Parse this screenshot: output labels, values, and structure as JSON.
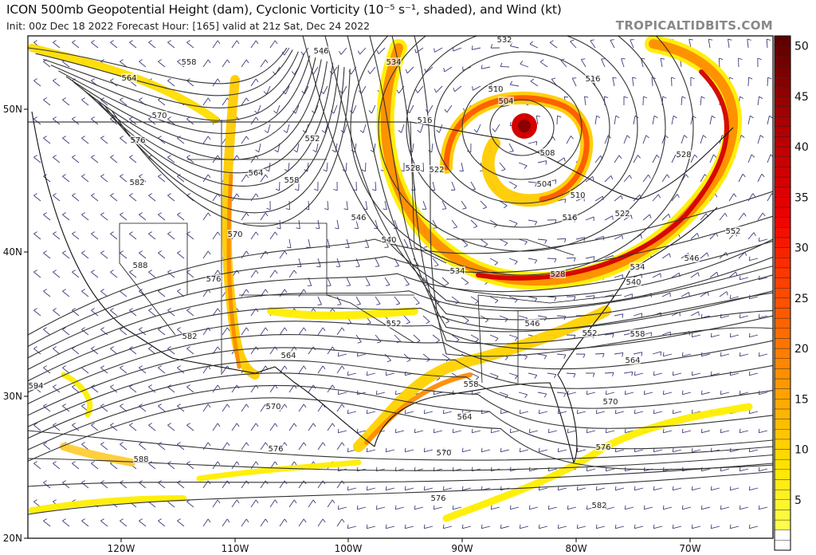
{
  "header": {
    "title": "ICON 500mb Geopotential Height (dam), Cyclonic Vorticity (10⁻⁵ s⁻¹, shaded), and Wind (kt)",
    "subtitle": "Init: 00z Dec 18 2022   Forecast Hour: [165]   valid at 21z Sat, Dec 24 2022",
    "brand": "TROPICALTIDBITS.COM"
  },
  "map": {
    "lon_labels": [
      "120W",
      "110W",
      "100W",
      "90W",
      "80W",
      "70W"
    ],
    "lat_labels": [
      "50N",
      "40N",
      "30N",
      "20N"
    ],
    "contour_labels": [
      "564",
      "558",
      "570",
      "576",
      "582",
      "588",
      "576",
      "582",
      "594",
      "588",
      "576",
      "570",
      "564",
      "552",
      "564",
      "558",
      "570",
      "546",
      "534",
      "546",
      "540",
      "528",
      "522",
      "516",
      "510",
      "504",
      "508",
      "504",
      "510",
      "516",
      "522",
      "532",
      "516",
      "528",
      "552",
      "546",
      "540",
      "534",
      "528",
      "534",
      "552",
      "546",
      "552",
      "558",
      "564",
      "558",
      "564",
      "570",
      "570",
      "576",
      "582",
      "576"
    ],
    "colors": {
      "contour": "#333333",
      "wind_barb": "#3c3c7a",
      "border": "#111111",
      "vort_low": "#ffff00",
      "vort_mid": "#ff8c00",
      "vort_high": "#d40000"
    }
  },
  "colorbar": {
    "range": [
      0,
      51
    ],
    "ticks": [
      "5",
      "10",
      "15",
      "20",
      "25",
      "30",
      "35",
      "40",
      "45",
      "50"
    ]
  }
}
